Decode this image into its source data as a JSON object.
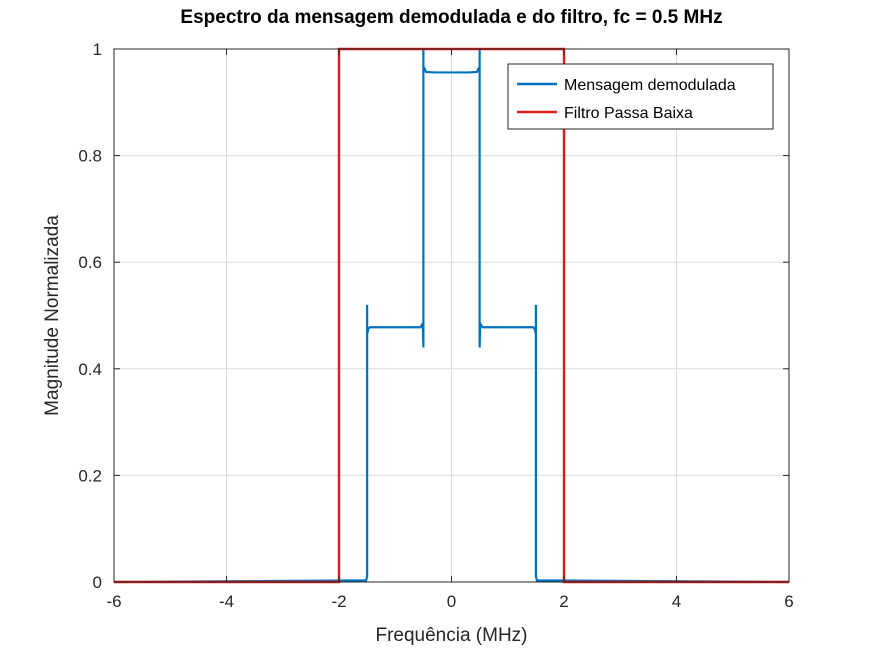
{
  "chart_data": {
    "type": "line",
    "title": "Espectro da mensagem demodulada e do filtro, fc = 0.5 MHz",
    "xlabel": "Frequência (MHz)",
    "ylabel": "Magnitude Normalizada",
    "xlim": [
      -6,
      6
    ],
    "ylim": [
      0,
      1
    ],
    "xticks": [
      -6,
      -4,
      -2,
      0,
      2,
      4,
      6
    ],
    "yticks": [
      0,
      0.2,
      0.4,
      0.6,
      0.8,
      1
    ],
    "xtick_labels": [
      "-6",
      "-4",
      "-2",
      "0",
      "2",
      "4",
      "6"
    ],
    "ytick_labels": [
      "0",
      "0.2",
      "0.4",
      "0.6",
      "0.8",
      "1"
    ],
    "grid": true,
    "legend_position": "top-right",
    "series": [
      {
        "name": "Mensagem demodulada",
        "color": "#0072bd",
        "x": [
          -6,
          -1.52,
          -1.5,
          -1.5,
          -1.5,
          -1.48,
          -1.45,
          -1.4,
          -0.7,
          -0.55,
          -0.51,
          -0.5,
          -0.5,
          -0.5,
          -0.49,
          -0.45,
          -0.3,
          0,
          0.3,
          0.45,
          0.49,
          0.5,
          0.5,
          0.5,
          0.51,
          0.55,
          0.7,
          1.4,
          1.45,
          1.48,
          1.5,
          1.5,
          1.5,
          1.52,
          6
        ],
        "y": [
          0,
          0.003,
          0.01,
          0.52,
          0.465,
          0.475,
          0.478,
          0.478,
          0.478,
          0.478,
          0.485,
          0.44,
          1.0,
          0.955,
          0.965,
          0.957,
          0.956,
          0.956,
          0.956,
          0.957,
          0.965,
          0.955,
          1.0,
          0.44,
          0.485,
          0.478,
          0.478,
          0.478,
          0.478,
          0.475,
          0.465,
          0.52,
          0.01,
          0.003,
          0
        ]
      },
      {
        "name": "Filtro Passa Baixa",
        "color": "#e41a1c",
        "x": [
          -6,
          -2,
          -2,
          2,
          2,
          6
        ],
        "y": [
          0,
          0,
          1,
          1,
          0,
          0
        ]
      }
    ]
  }
}
